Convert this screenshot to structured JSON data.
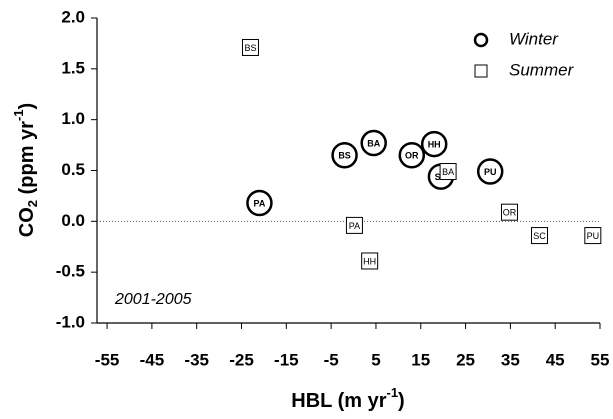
{
  "chart_data": {
    "type": "scatter",
    "x_label": [
      "HBL (m yr",
      "-1",
      ")"
    ],
    "y_label": [
      "CO",
      "2",
      " (ppm yr",
      "-1",
      ")"
    ],
    "annotation": "2001-2005",
    "xlim": [
      -57.25,
      55
    ],
    "xticks": [
      -55,
      -45,
      -35,
      -25,
      -15,
      -5,
      5,
      15,
      25,
      35,
      45,
      55
    ],
    "ylim": [
      -1,
      2
    ],
    "yticks": [
      {
        "value": -1,
        "label": "-1.0"
      },
      {
        "value": -0.5,
        "label": "-0.5"
      },
      {
        "value": 0,
        "label": "0.0"
      },
      {
        "value": 0.5,
        "label": "0.5"
      },
      {
        "value": 1,
        "label": "1.0"
      },
      {
        "value": 1.5,
        "label": "1.5"
      },
      {
        "value": 2,
        "label": "2.0"
      }
    ],
    "reference_line_at_zero": true,
    "legend": "upper right",
    "series": [
      {
        "name": "Winter",
        "marker": "circle",
        "color": "#000000",
        "x": [
          -21,
          -2,
          4.5,
          13,
          18,
          19.5,
          30.5
        ],
        "values": [
          0.18,
          0.65,
          0.77,
          0.65,
          0.76,
          0.44,
          0.49
        ],
        "labels": [
          "PA",
          "BS",
          "BA",
          "OR",
          "HH",
          "SC",
          "PU"
        ]
      },
      {
        "name": "Summer",
        "marker": "square",
        "color": "#000000",
        "x": [
          -23,
          0.2,
          3.6,
          21.1,
          34.8,
          41.5,
          53.4
        ],
        "values": [
          1.71,
          -0.04,
          -0.39,
          0.49,
          0.09,
          -0.14,
          -0.14
        ],
        "labels": [
          "BS",
          "PA",
          "HH",
          "BA",
          "OR",
          "SC",
          "PU"
        ]
      }
    ]
  }
}
